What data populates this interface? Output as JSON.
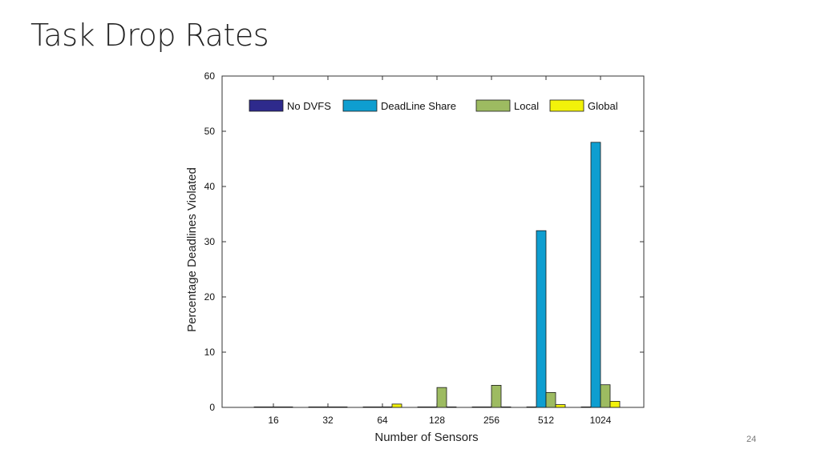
{
  "slide": {
    "title": "Task Drop Rates",
    "page_number": "24"
  },
  "chart_data": {
    "type": "bar",
    "categories": [
      "16",
      "32",
      "64",
      "128",
      "256",
      "512",
      "1024"
    ],
    "series": [
      {
        "name": "No DVFS",
        "color": "#2e2a8c",
        "values": [
          0,
          0,
          0,
          0,
          0,
          0,
          0
        ]
      },
      {
        "name": "DeadLine Share",
        "color": "#0e9ed0",
        "values": [
          0,
          0,
          0,
          0,
          0,
          32,
          48
        ]
      },
      {
        "name": "Local",
        "color": "#9dbb61",
        "values": [
          0,
          0,
          0,
          3.6,
          4,
          2.7,
          4.1
        ]
      },
      {
        "name": "Global",
        "color": "#f2f20a",
        "values": [
          0,
          0,
          0.6,
          0,
          0,
          0.5,
          1.1
        ]
      }
    ],
    "xlabel": "Number of Sensors",
    "ylabel": "Percentage Deadlines Violated",
    "ylim": [
      0,
      60
    ],
    "yticks": [
      "0",
      "10",
      "20",
      "30",
      "40",
      "50",
      "60"
    ],
    "grid": false,
    "legend_position": "top, horizontal"
  }
}
